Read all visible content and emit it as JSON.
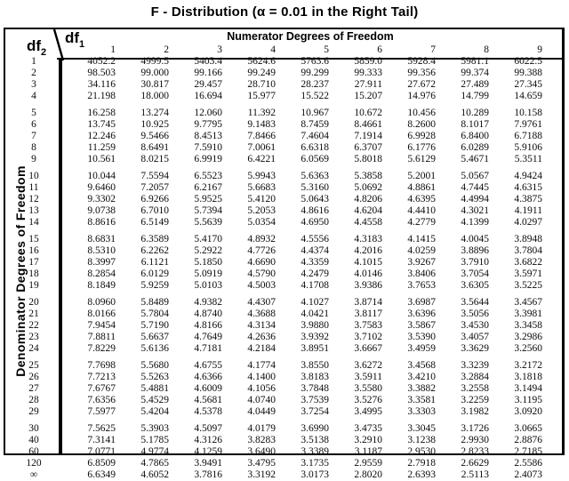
{
  "title": "F - Distribution (α = 0.01 in the Right Tail)",
  "table": {
    "corner": {
      "row_var": "df",
      "row_sub": "2",
      "col_var": "df",
      "col_sub": "1"
    },
    "col_group_label": "Numerator Degrees of Freedom",
    "row_group_label": "Denominator Degrees of Freedom",
    "columns": [
      "1",
      "2",
      "3",
      "4",
      "5",
      "6",
      "7",
      "8",
      "9"
    ],
    "row_groups": [
      {
        "rows": [
          {
            "label": "1",
            "values": [
              "4052.2",
              "4999.5",
              "5403.4",
              "5624.6",
              "5763.6",
              "5859.0",
              "5928.4",
              "5981.1",
              "6022.5"
            ]
          },
          {
            "label": "2",
            "values": [
              "98.503",
              "99.000",
              "99.166",
              "99.249",
              "99.299",
              "99.333",
              "99.356",
              "99.374",
              "99.388"
            ]
          },
          {
            "label": "3",
            "values": [
              "34.116",
              "30.817",
              "29.457",
              "28.710",
              "28.237",
              "27.911",
              "27.672",
              "27.489",
              "27.345"
            ]
          },
          {
            "label": "4",
            "values": [
              "21.198",
              "18.000",
              "16.694",
              "15.977",
              "15.522",
              "15.207",
              "14.976",
              "14.799",
              "14.659"
            ]
          }
        ]
      },
      {
        "rows": [
          {
            "label": "5",
            "values": [
              "16.258",
              "13.274",
              "12.060",
              "11.392",
              "10.967",
              "10.672",
              "10.456",
              "10.289",
              "10.158"
            ]
          },
          {
            "label": "6",
            "values": [
              "13.745",
              "10.925",
              "9.7795",
              "9.1483",
              "8.7459",
              "8.4661",
              "8.2600",
              "8.1017",
              "7.9761"
            ]
          },
          {
            "label": "7",
            "values": [
              "12.246",
              "9.5466",
              "8.4513",
              "7.8466",
              "7.4604",
              "7.1914",
              "6.9928",
              "6.8400",
              "6.7188"
            ]
          },
          {
            "label": "8",
            "values": [
              "11.259",
              "8.6491",
              "7.5910",
              "7.0061",
              "6.6318",
              "6.3707",
              "6.1776",
              "6.0289",
              "5.9106"
            ]
          },
          {
            "label": "9",
            "values": [
              "10.561",
              "8.0215",
              "6.9919",
              "6.4221",
              "6.0569",
              "5.8018",
              "5.6129",
              "5.4671",
              "5.3511"
            ]
          }
        ]
      },
      {
        "rows": [
          {
            "label": "10",
            "values": [
              "10.044",
              "7.5594",
              "6.5523",
              "5.9943",
              "5.6363",
              "5.3858",
              "5.2001",
              "5.0567",
              "4.9424"
            ]
          },
          {
            "label": "11",
            "values": [
              "9.6460",
              "7.2057",
              "6.2167",
              "5.6683",
              "5.3160",
              "5.0692",
              "4.8861",
              "4.7445",
              "4.6315"
            ]
          },
          {
            "label": "12",
            "values": [
              "9.3302",
              "6.9266",
              "5.9525",
              "5.4120",
              "5.0643",
              "4.8206",
              "4.6395",
              "4.4994",
              "4.3875"
            ]
          },
          {
            "label": "13",
            "values": [
              "9.0738",
              "6.7010",
              "5.7394",
              "5.2053",
              "4.8616",
              "4.6204",
              "4.4410",
              "4.3021",
              "4.1911"
            ]
          },
          {
            "label": "14",
            "values": [
              "8.8616",
              "6.5149",
              "5.5639",
              "5.0354",
              "4.6950",
              "4.4558",
              "4.2779",
              "4.1399",
              "4.0297"
            ]
          }
        ]
      },
      {
        "rows": [
          {
            "label": "15",
            "values": [
              "8.6831",
              "6.3589",
              "5.4170",
              "4.8932",
              "4.5556",
              "4.3183",
              "4.1415",
              "4.0045",
              "3.8948"
            ]
          },
          {
            "label": "16",
            "values": [
              "8.5310",
              "6.2262",
              "5.2922",
              "4.7726",
              "4.4374",
              "4.2016",
              "4.0259",
              "3.8896",
              "3.7804"
            ]
          },
          {
            "label": "17",
            "values": [
              "8.3997",
              "6.1121",
              "5.1850",
              "4.6690",
              "4.3359",
              "4.1015",
              "3.9267",
              "3.7910",
              "3.6822"
            ]
          },
          {
            "label": "18",
            "values": [
              "8.2854",
              "6.0129",
              "5.0919",
              "4.5790",
              "4.2479",
              "4.0146",
              "3.8406",
              "3.7054",
              "3.5971"
            ]
          },
          {
            "label": "19",
            "values": [
              "8.1849",
              "5.9259",
              "5.0103",
              "4.5003",
              "4.1708",
              "3.9386",
              "3.7653",
              "3.6305",
              "3.5225"
            ]
          }
        ]
      },
      {
        "rows": [
          {
            "label": "20",
            "values": [
              "8.0960",
              "5.8489",
              "4.9382",
              "4.4307",
              "4.1027",
              "3.8714",
              "3.6987",
              "3.5644",
              "3.4567"
            ]
          },
          {
            "label": "21",
            "values": [
              "8.0166",
              "5.7804",
              "4.8740",
              "4.3688",
              "4.0421",
              "3.8117",
              "3.6396",
              "3.5056",
              "3.3981"
            ]
          },
          {
            "label": "22",
            "values": [
              "7.9454",
              "5.7190",
              "4.8166",
              "4.3134",
              "3.9880",
              "3.7583",
              "3.5867",
              "3.4530",
              "3.3458"
            ]
          },
          {
            "label": "23",
            "values": [
              "7.8811",
              "5.6637",
              "4.7649",
              "4.2636",
              "3.9392",
              "3.7102",
              "3.5390",
              "3.4057",
              "3.2986"
            ]
          },
          {
            "label": "24",
            "values": [
              "7.8229",
              "5.6136",
              "4.7181",
              "4.2184",
              "3.8951",
              "3.6667",
              "3.4959",
              "3.3629",
              "3.2560"
            ]
          }
        ]
      },
      {
        "rows": [
          {
            "label": "25",
            "values": [
              "7.7698",
              "5.5680",
              "4.6755",
              "4.1774",
              "3.8550",
              "3.6272",
              "3.4568",
              "3.3239",
              "3.2172"
            ]
          },
          {
            "label": "26",
            "values": [
              "7.7213",
              "5.5263",
              "4.6366",
              "4.1400",
              "3.8183",
              "3.5911",
              "3.4210",
              "3.2884",
              "3.1818"
            ]
          },
          {
            "label": "27",
            "values": [
              "7.6767",
              "5.4881",
              "4.6009",
              "4.1056",
              "3.7848",
              "3.5580",
              "3.3882",
              "3.2558",
              "3.1494"
            ]
          },
          {
            "label": "28",
            "values": [
              "7.6356",
              "5.4529",
              "4.5681",
              "4.0740",
              "3.7539",
              "3.5276",
              "3.3581",
              "3.2259",
              "3.1195"
            ]
          },
          {
            "label": "29",
            "values": [
              "7.5977",
              "5.4204",
              "4.5378",
              "4.0449",
              "3.7254",
              "3.4995",
              "3.3303",
              "3.1982",
              "3.0920"
            ]
          }
        ]
      },
      {
        "rows": [
          {
            "label": "30",
            "values": [
              "7.5625",
              "5.3903",
              "4.5097",
              "4.0179",
              "3.6990",
              "3.4735",
              "3.3045",
              "3.1726",
              "3.0665"
            ]
          },
          {
            "label": "40",
            "values": [
              "7.3141",
              "5.1785",
              "4.3126",
              "3.8283",
              "3.5138",
              "3.2910",
              "3.1238",
              "2.9930",
              "2.8876"
            ]
          },
          {
            "label": "60",
            "values": [
              "7.0771",
              "4.9774",
              "4.1259",
              "3.6490",
              "3.3389",
              "3.1187",
              "2.9530",
              "2.8233",
              "2.7185"
            ]
          },
          {
            "label": "120",
            "values": [
              "6.8509",
              "4.7865",
              "3.9491",
              "3.4795",
              "3.1735",
              "2.9559",
              "2.7918",
              "2.6629",
              "2.5586"
            ]
          },
          {
            "label": "∞",
            "values": [
              "6.6349",
              "4.6052",
              "3.7816",
              "3.3192",
              "3.0173",
              "2.8020",
              "2.6393",
              "2.5113",
              "2.4073"
            ]
          }
        ]
      }
    ]
  }
}
